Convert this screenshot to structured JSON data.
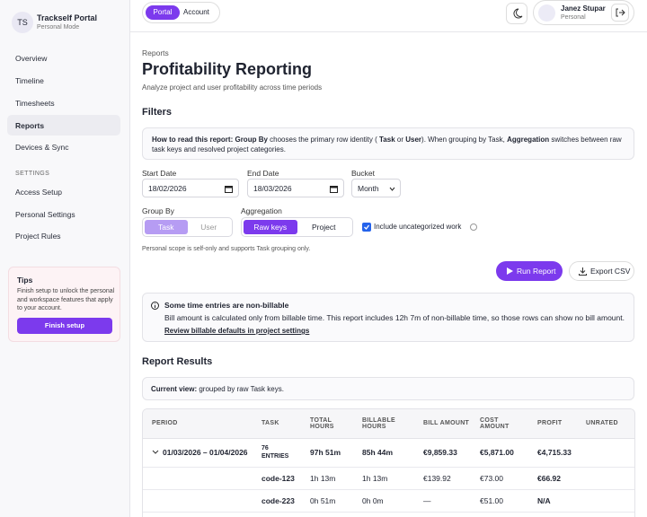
{
  "brand": {
    "initials": "TS",
    "name": "Trackself Portal",
    "mode": "Personal Mode"
  },
  "nav": [
    "Overview",
    "Timeline",
    "Timesheets",
    "Reports",
    "Devices & Sync"
  ],
  "settings_heading": "SETTINGS",
  "settings_nav": [
    "Access Setup",
    "Personal Settings",
    "Project Rules"
  ],
  "tips": {
    "title": "Tips",
    "text": "Finish setup to unlock the personal and workspace features that apply to your account.",
    "button": "Finish setup"
  },
  "topbar": {
    "tabs": [
      "Portal",
      "Account"
    ],
    "user": {
      "name": "Janez Stupar",
      "role": "Personal"
    }
  },
  "page": {
    "breadcrumb": "Reports",
    "title": "Profitability Reporting",
    "subtitle": "Analyze project and user profitability across time periods"
  },
  "filters": {
    "heading": "Filters",
    "how_to": [
      "How to read this report:",
      "Group By",
      "chooses the primary row identity (",
      "Task",
      "or",
      "User",
      "). When grouping by Task,",
      "Aggregation",
      "switches between raw task keys and resolved project categories."
    ],
    "start": {
      "label": "Start Date",
      "value": "18/02/2026"
    },
    "end": {
      "label": "End Date",
      "value": "18/03/2026"
    },
    "bucket": {
      "label": "Bucket",
      "value": "Month"
    },
    "group_by": {
      "label": "Group By",
      "options": [
        "Task",
        "User"
      ]
    },
    "aggregation": {
      "label": "Aggregation",
      "options": [
        "Raw keys",
        "Project"
      ]
    },
    "include": "Include uncategorized work",
    "note": "Personal scope is self-only and supports Task grouping only.",
    "run": "Run Report",
    "export": "Export CSV"
  },
  "notice": {
    "title": "Some time entries are non-billable",
    "text": "Bill amount is calculated only from billable time. This report includes 12h 7m of non-billable time, so those rows can show no bill amount.",
    "link": "Review billable defaults in project settings"
  },
  "results": {
    "heading": "Report Results",
    "view_label": "Current view:",
    "view_text": "grouped by raw Task keys."
  },
  "table": {
    "headers": [
      "PERIOD",
      "TASK",
      "TOTAL HOURS",
      "BILLABLE HOURS",
      "BILL AMOUNT",
      "COST AMOUNT",
      "PROFIT",
      "UNRATED"
    ],
    "rows": [
      {
        "period": "01/03/2026 – 01/04/2026",
        "task": "76 ENTRIES",
        "total": "97h 51m",
        "billable": "85h 44m",
        "bill": "€9,859.33",
        "cost": "€5,871.00",
        "profit": "€4,715.33"
      },
      {
        "task": "code-123",
        "total": "1h 13m",
        "billable": "1h 13m",
        "bill": "€139.92",
        "cost": "€73.00",
        "profit": "€66.92"
      },
      {
        "task": "code-223",
        "total": "0h 51m",
        "billable": "0h 0m",
        "bill": "—",
        "cost": "€51.00",
        "profit": "N/A"
      }
    ]
  }
}
